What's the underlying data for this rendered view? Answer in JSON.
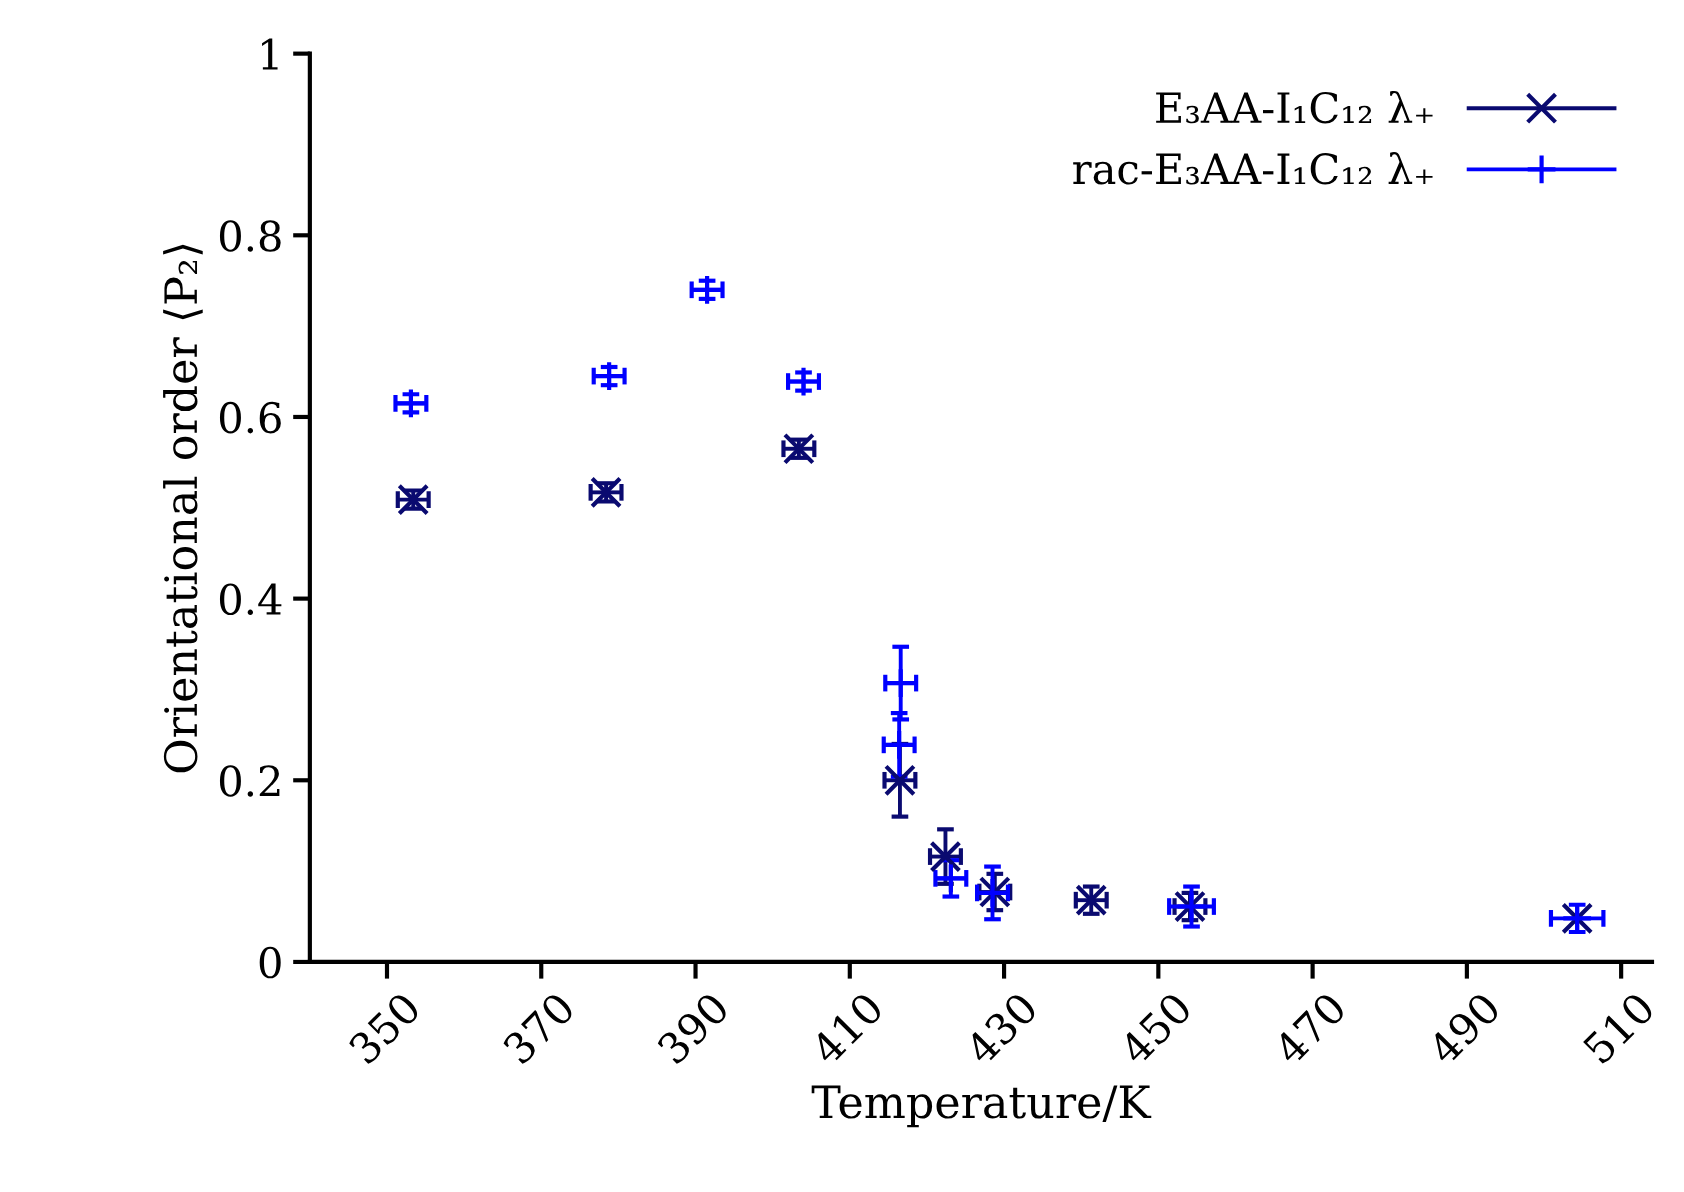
{
  "chart_data": {
    "type": "scatter",
    "xlabel": "Temperature/K",
    "ylabel": "Orientational order ⟨P₂⟩",
    "xlim": [
      340,
      514
    ],
    "xticks": [
      350,
      370,
      390,
      410,
      430,
      450,
      470,
      490,
      510
    ],
    "ylim": [
      0,
      1
    ],
    "yticks": [
      0,
      {
        "value": 0.2,
        "label": "0.2"
      },
      {
        "value": 0.4,
        "label": "0.4"
      },
      {
        "value": 0.6,
        "label": "0.6"
      },
      {
        "value": 0.8,
        "label": "0.8"
      },
      1
    ],
    "grid": false,
    "legend": "top right",
    "series": [
      {
        "name": "E₃AA-I₁C₁₂ λ₊",
        "color": "#0a0a70",
        "marker": "cross",
        "x": [
          353.4,
          378.4,
          403.4,
          416.5,
          422.4,
          428.8,
          441.3,
          454.1,
          504.3
        ],
        "values": [
          0.509,
          0.517,
          0.565,
          0.2,
          0.116,
          0.077,
          0.068,
          0.061,
          0.048
        ],
        "errors": [
          0.01,
          0.01,
          0.01,
          0.04,
          0.03,
          0.02,
          0.015,
          0.015,
          null
        ],
        "xerrors": [
          2,
          2,
          2,
          2,
          2,
          2,
          2,
          2,
          null
        ]
      },
      {
        "name": "rac-E₃AA-I₁C₁₂ λ₊",
        "color": "#0000ff",
        "marker": "plus",
        "x": [
          353.1,
          378.8,
          391.5,
          404,
          416.6,
          416.4,
          423.1,
          428.5,
          454.3,
          504.3
        ],
        "values": [
          0.615,
          0.645,
          0.74,
          0.639,
          0.307,
          0.239,
          0.092,
          0.076,
          0.061,
          0.048
        ],
        "errors": [
          0.01,
          0.01,
          0.01,
          0.01,
          0.04,
          0.035,
          0.02,
          0.029,
          0.022,
          0.015
        ],
        "xerrors": [
          2,
          2,
          2,
          2,
          2,
          2,
          2,
          2,
          2.9,
          3.4
        ]
      }
    ]
  }
}
